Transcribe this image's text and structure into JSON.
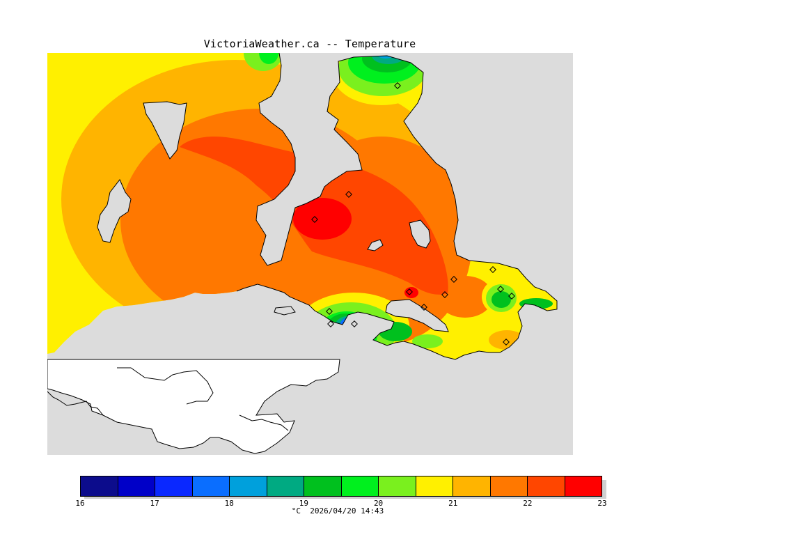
{
  "title": "VictoriaWeather.ca -- Temperature",
  "legend": {
    "ticks": [
      "16",
      "17",
      "18",
      "19",
      "20",
      "21",
      "22",
      "23"
    ],
    "colors": [
      "#0c0c8c",
      "#0000c8",
      "#0a28ff",
      "#0a6eff",
      "#00a0dc",
      "#00aa82",
      "#00c01e",
      "#00f01e",
      "#7af01e",
      "#fff000",
      "#ffb400",
      "#ff7800",
      "#ff4600",
      "#ff0000"
    ],
    "unit": "°C",
    "timestamp": "2026/04/20 14:43"
  },
  "palette": {
    "sea": "#dcdcdc",
    "us_land": "#ffffff",
    "coast": "#000000"
  }
}
